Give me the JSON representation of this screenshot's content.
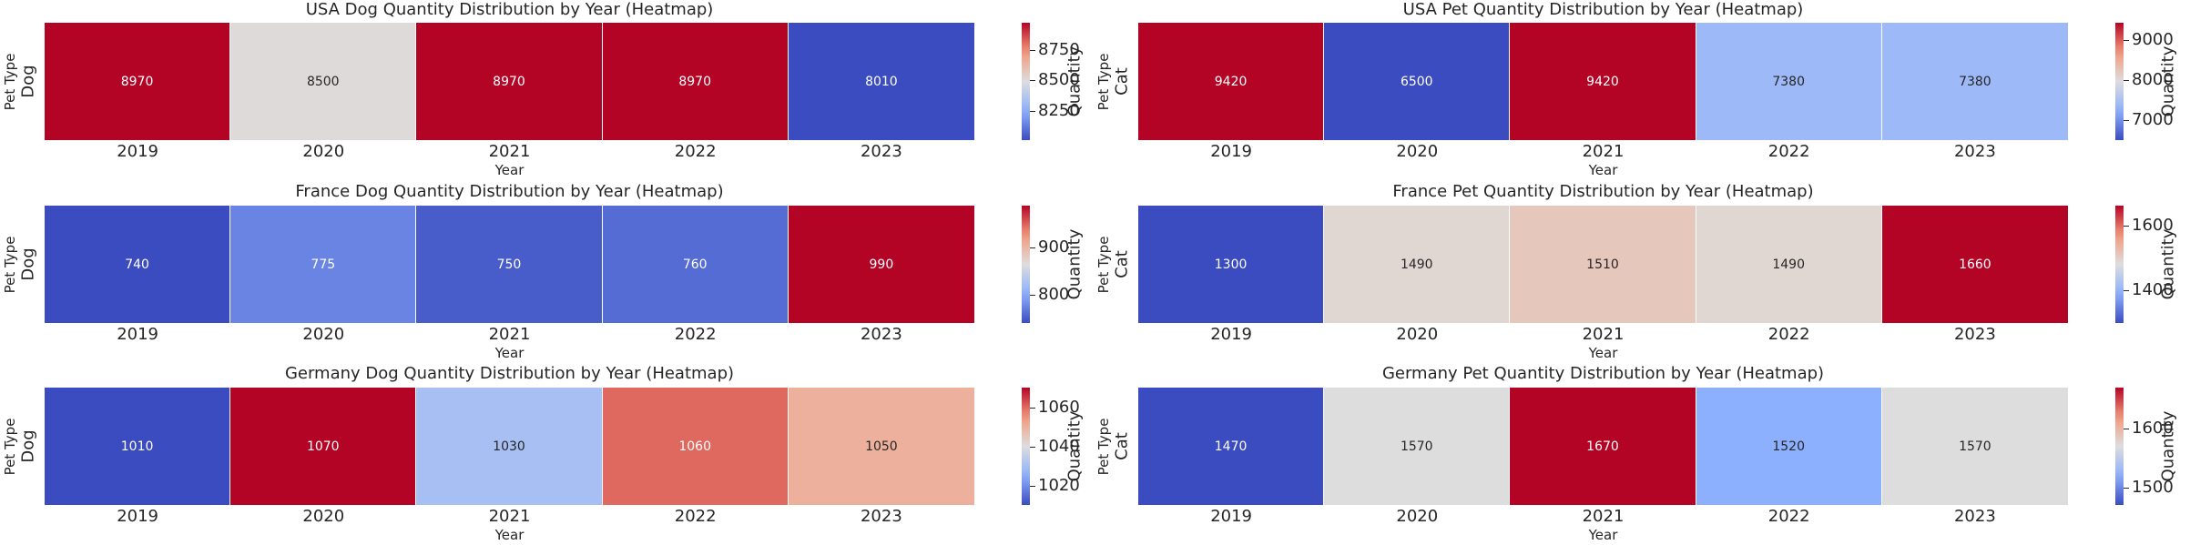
{
  "chart_data": [
    {
      "type": "heatmap",
      "title": "USA Dog Quantity Distribution by Year (Heatmap)",
      "xlabel": "Year",
      "ylabel": "Pet Type",
      "rows": [
        "Dog"
      ],
      "categories": [
        "2019",
        "2020",
        "2021",
        "2022",
        "2023"
      ],
      "values": [
        8970,
        8500,
        8970,
        8970,
        8010
      ],
      "colorbar": {
        "label": "Quantity",
        "ticks": [
          8250,
          8500,
          8750
        ]
      },
      "colormap": "coolwarm"
    },
    {
      "type": "heatmap",
      "title": "USA Pet Quantity Distribution by Year (Heatmap)",
      "xlabel": "Year",
      "ylabel": "Pet Type",
      "rows": [
        "Cat"
      ],
      "categories": [
        "2019",
        "2020",
        "2021",
        "2022",
        "2023"
      ],
      "values": [
        9420,
        6500,
        9420,
        7380,
        7380
      ],
      "colorbar": {
        "label": "Quantity",
        "ticks": [
          7000,
          8000,
          9000
        ]
      },
      "colormap": "coolwarm"
    },
    {
      "type": "heatmap",
      "title": "France Dog Quantity Distribution by Year (Heatmap)",
      "xlabel": "Year",
      "ylabel": "Pet Type",
      "rows": [
        "Dog"
      ],
      "categories": [
        "2019",
        "2020",
        "2021",
        "2022",
        "2023"
      ],
      "values": [
        740,
        775,
        750,
        760,
        990
      ],
      "colorbar": {
        "label": "Quantity",
        "ticks": [
          800,
          900
        ]
      },
      "colormap": "coolwarm"
    },
    {
      "type": "heatmap",
      "title": "France Pet Quantity Distribution by Year (Heatmap)",
      "xlabel": "Year",
      "ylabel": "Pet Type",
      "rows": [
        "Cat"
      ],
      "categories": [
        "2019",
        "2020",
        "2021",
        "2022",
        "2023"
      ],
      "values": [
        1300,
        1490,
        1510,
        1490,
        1660
      ],
      "colorbar": {
        "label": "Quantity",
        "ticks": [
          1400,
          1600
        ]
      },
      "colormap": "coolwarm"
    },
    {
      "type": "heatmap",
      "title": "Germany Dog Quantity Distribution by Year (Heatmap)",
      "xlabel": "Year",
      "ylabel": "Pet Type",
      "rows": [
        "Dog"
      ],
      "categories": [
        "2019",
        "2020",
        "2021",
        "2022",
        "2023"
      ],
      "values": [
        1010,
        1070,
        1030,
        1060,
        1050
      ],
      "colorbar": {
        "label": "Quantity",
        "ticks": [
          1020,
          1040,
          1060
        ]
      },
      "colormap": "coolwarm"
    },
    {
      "type": "heatmap",
      "title": "Germany Pet Quantity Distribution by Year (Heatmap)",
      "xlabel": "Year",
      "ylabel": "Pet Type",
      "rows": [
        "Cat"
      ],
      "categories": [
        "2019",
        "2020",
        "2021",
        "2022",
        "2023"
      ],
      "values": [
        1470,
        1570,
        1670,
        1520,
        1570
      ],
      "colorbar": {
        "label": "Quantity",
        "ticks": [
          1500,
          1600
        ]
      },
      "colormap": "coolwarm"
    }
  ]
}
